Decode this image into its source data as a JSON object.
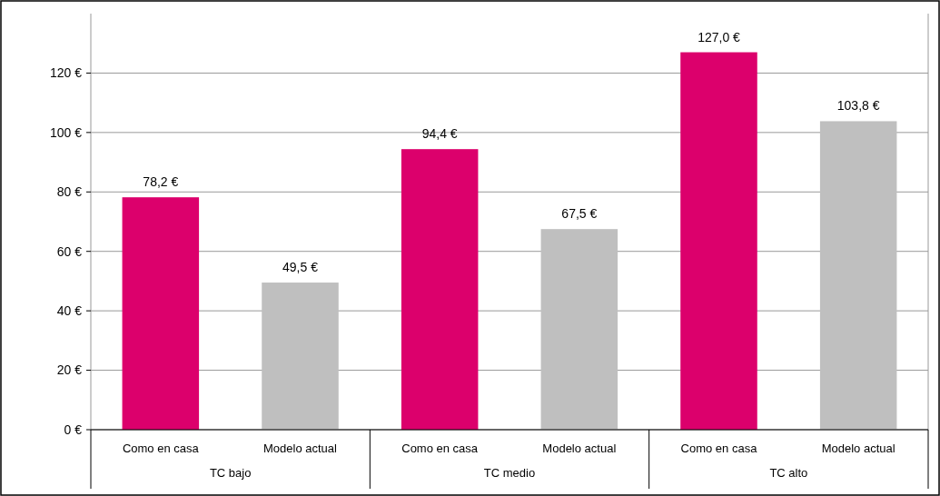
{
  "chart_data": {
    "type": "bar",
    "categories": [
      "TC bajo",
      "TC medio",
      "TC alto"
    ],
    "series": [
      {
        "name": "Como en casa",
        "color": "#dc006c",
        "values": [
          78.2,
          94.4,
          127.0
        ],
        "value_labels": [
          "78,2 €",
          "94,4 €",
          "127,0 €"
        ]
      },
      {
        "name": "Modelo actual",
        "color": "#bfbfbf",
        "values": [
          49.5,
          67.5,
          103.8
        ],
        "value_labels": [
          "49,5 €",
          "67,5 €",
          "103,8 €"
        ]
      }
    ],
    "ylim": [
      0,
      140
    ],
    "yticks": [
      {
        "value": 0,
        "label": "0 €"
      },
      {
        "value": 20,
        "label": "20 €"
      },
      {
        "value": 40,
        "label": "40 €"
      },
      {
        "value": 60,
        "label": "60 €"
      },
      {
        "value": 80,
        "label": "80 €"
      },
      {
        "value": 100,
        "label": "100 €"
      },
      {
        "value": 120,
        "label": "120 €"
      }
    ],
    "grid": "y"
  }
}
